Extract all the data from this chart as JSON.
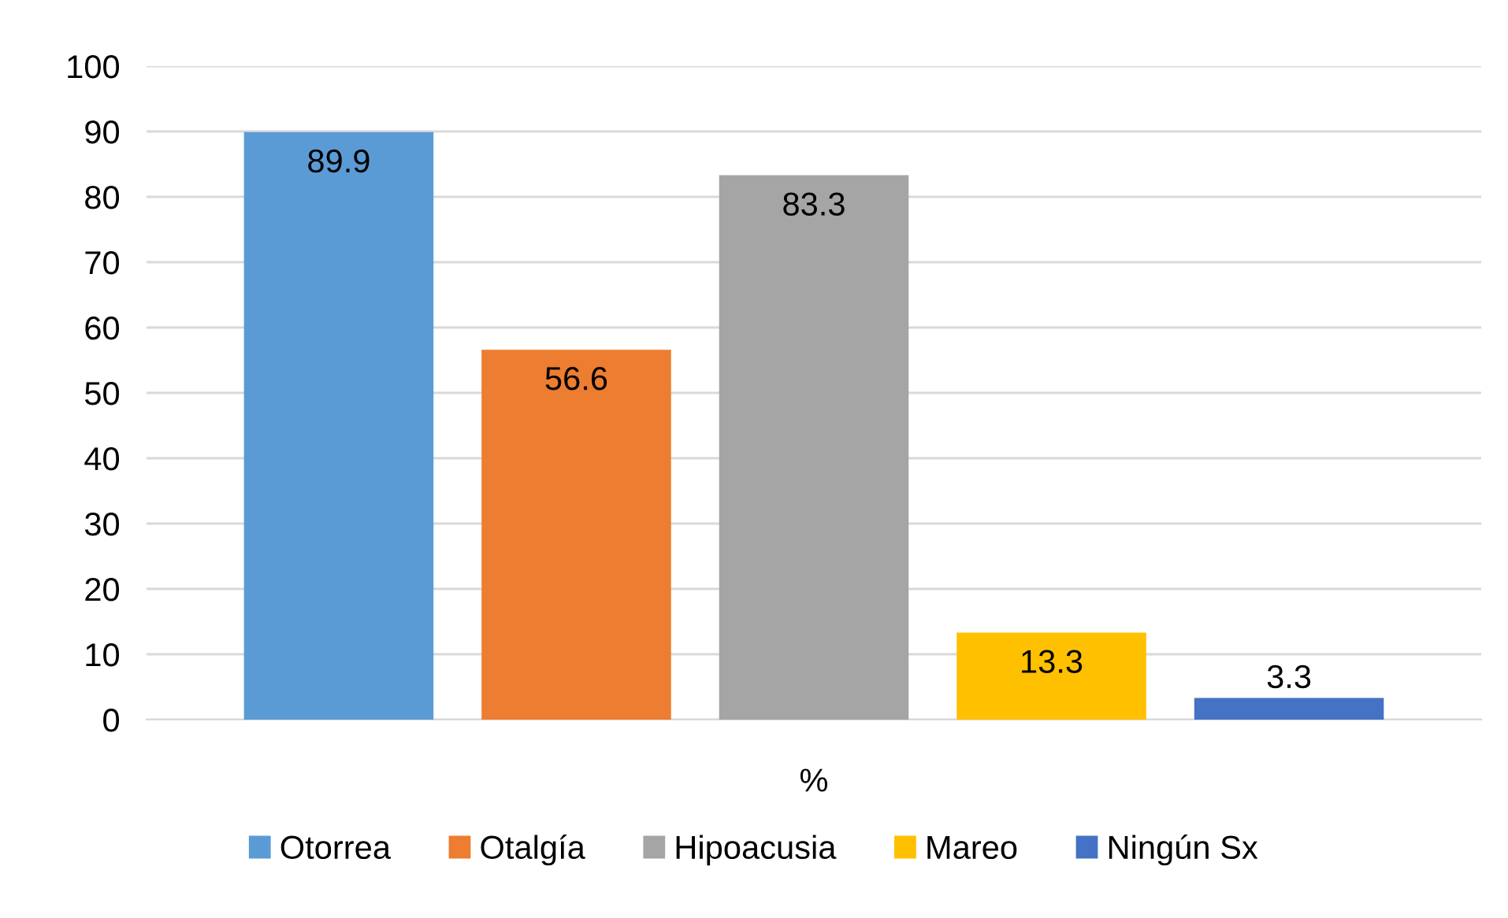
{
  "chart_data": {
    "type": "bar",
    "categories": [
      "%"
    ],
    "series": [
      {
        "name": "Otorrea",
        "color": "#5b9bd5",
        "values": [
          89.9
        ]
      },
      {
        "name": "Otalgía",
        "color": "#ed7d31",
        "values": [
          56.6
        ]
      },
      {
        "name": "Hipoacusia",
        "color": "#a5a5a5",
        "values": [
          83.3
        ]
      },
      {
        "name": "Mareo",
        "color": "#ffc000",
        "values": [
          13.3
        ]
      },
      {
        "name": "Ningún Sx",
        "color": "#4472c4",
        "values": [
          3.3
        ]
      }
    ],
    "ylim": [
      0,
      100
    ],
    "yticks": [
      0,
      10,
      20,
      30,
      40,
      50,
      60,
      70,
      80,
      90,
      100
    ],
    "grid": "y",
    "legend": "bottom",
    "data_labels": true
  }
}
